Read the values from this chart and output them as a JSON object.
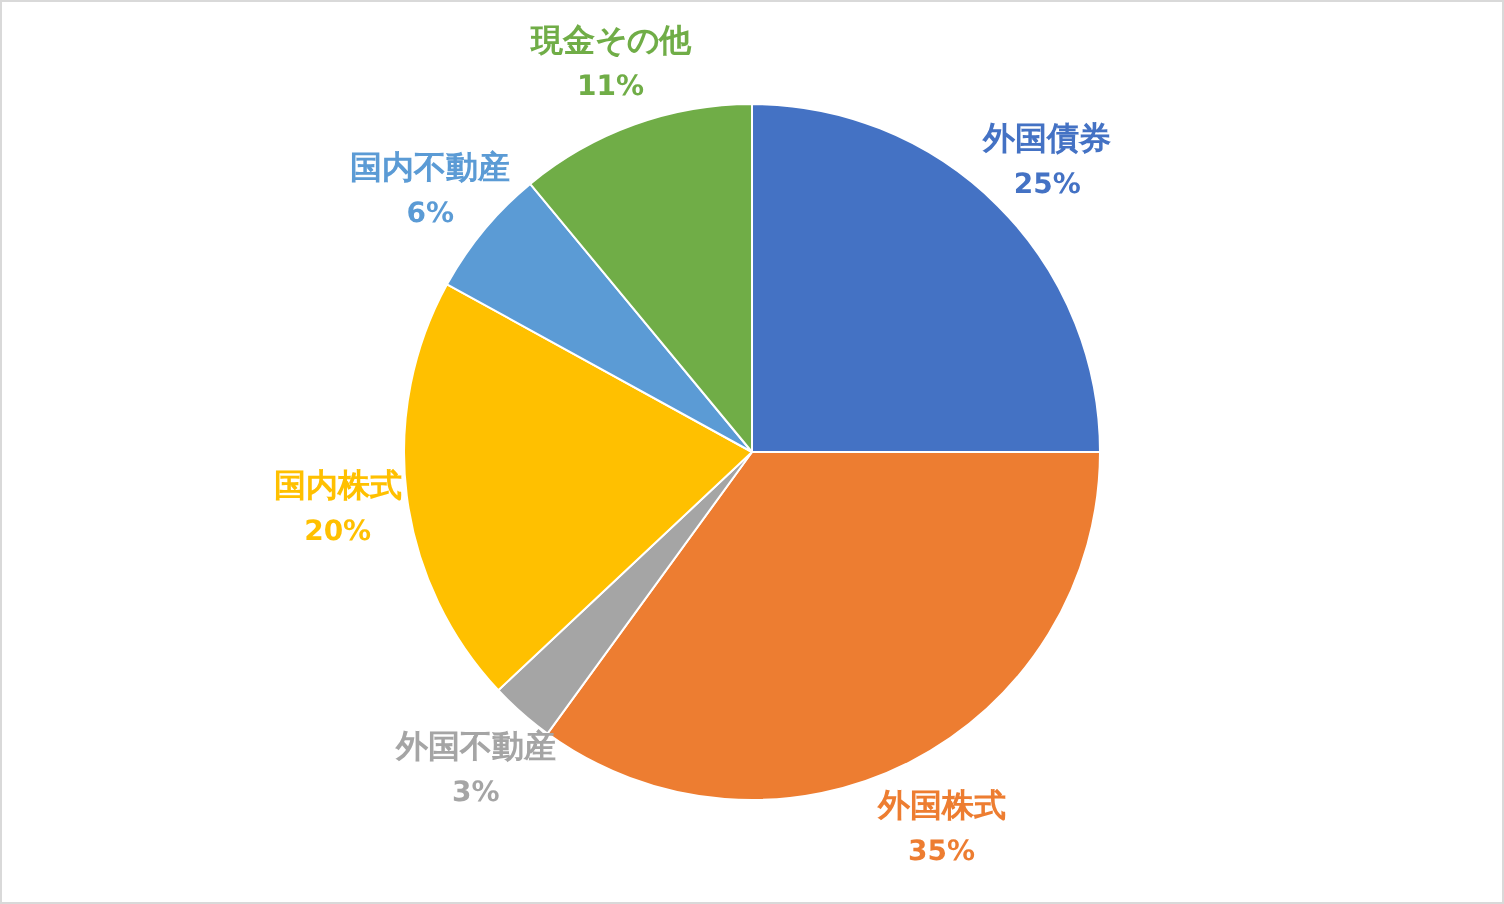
{
  "chart_data": {
    "type": "pie",
    "categories": [
      "外国債券",
      "外国株式",
      "外国不動産",
      "国内株式",
      "国内不動産",
      "現金その他"
    ],
    "values": [
      25,
      35,
      3,
      20,
      6,
      11
    ],
    "colors": [
      "#4472c4",
      "#ed7d31",
      "#a5a5a5",
      "#ffc000",
      "#5b9bd5",
      "#70ad47"
    ],
    "value_labels": [
      "25%",
      "35%",
      "3%",
      "20%",
      "6%",
      "11%"
    ]
  }
}
